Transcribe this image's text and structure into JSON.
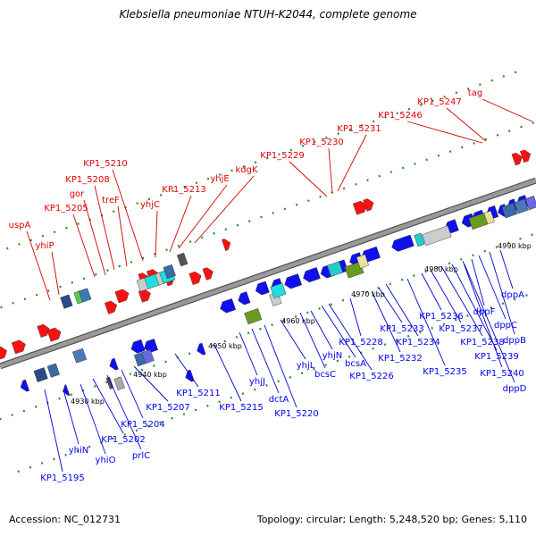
{
  "title": "Klebsiella pneumoniae NTUH-K2044, complete genome",
  "footer": {
    "accession": "Accession: NC_012731",
    "summary": "Topology: circular; Length: 5,248,520 bp; Genes: 5,110"
  },
  "colors": {
    "upper_labels": "#e00000",
    "lower_labels": "#0000ee",
    "backbone": "#9a9a9a",
    "forward_gene": "#ff1010",
    "reverse_gene": "#1010ee"
  },
  "scale_ticks": [
    {
      "label": "4930 kbp"
    },
    {
      "label": "4940 kbp"
    },
    {
      "label": "4950 kbp"
    },
    {
      "label": "4960 kbp"
    },
    {
      "label": "4970 kbp"
    },
    {
      "label": "4980 kbp"
    },
    {
      "label": "4990 kbp"
    }
  ],
  "upper_genes": [
    {
      "label": "uspA"
    },
    {
      "label": "yhiP"
    },
    {
      "label": "KP1_5205"
    },
    {
      "label": "gor"
    },
    {
      "label": "KP1_5208"
    },
    {
      "label": "treF"
    },
    {
      "label": "KP1_5210"
    },
    {
      "label": "yhjC"
    },
    {
      "label": "KP1_5213"
    },
    {
      "label": "yhjE"
    },
    {
      "label": "kdgK"
    },
    {
      "label": "KP1_5229"
    },
    {
      "label": "KP1_5230"
    },
    {
      "label": "KP1_5231"
    },
    {
      "label": "KP1_5246"
    },
    {
      "label": "KP1_5247"
    },
    {
      "label": "tag"
    }
  ],
  "lower_genes": [
    {
      "label": "KP1_5195"
    },
    {
      "label": "yhiN"
    },
    {
      "label": "yhiO"
    },
    {
      "label": "KP1_5202"
    },
    {
      "label": "prlC"
    },
    {
      "label": "KP1_5204"
    },
    {
      "label": "KP1_5207"
    },
    {
      "label": "KP1_5211"
    },
    {
      "label": "KP1_5215"
    },
    {
      "label": "yhjJ"
    },
    {
      "label": "dctA"
    },
    {
      "label": "KP1_5220"
    },
    {
      "label": "yhjL"
    },
    {
      "label": "bcsC"
    },
    {
      "label": "yhjN"
    },
    {
      "label": "bcsA"
    },
    {
      "label": "KP1_5226"
    },
    {
      "label": "KP1_5228"
    },
    {
      "label": "KP1_5232"
    },
    {
      "label": "KP1_5233"
    },
    {
      "label": "KP1_5234"
    },
    {
      "label": "KP1_5235"
    },
    {
      "label": "KP1_5236"
    },
    {
      "label": "KP1_5237"
    },
    {
      "label": "KP1_5238"
    },
    {
      "label": "KP1_5239"
    },
    {
      "label": "KP1_5240"
    },
    {
      "label": "dppF"
    },
    {
      "label": "dppC"
    },
    {
      "label": "dppB"
    },
    {
      "label": "dppA"
    },
    {
      "label": "dppD"
    }
  ]
}
